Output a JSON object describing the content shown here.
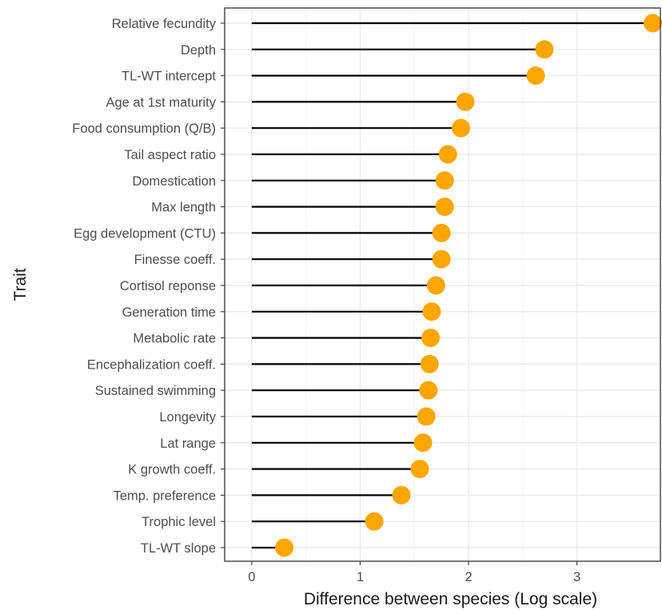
{
  "chart_data": {
    "type": "lollipop",
    "xlabel": "Difference between species (Log scale)",
    "ylabel": "Trait",
    "xlim": [
      -0.25,
      3.77
    ],
    "x_ticks": [
      0,
      1,
      2,
      3
    ],
    "grid": true,
    "point_color": "#FFA500",
    "stem_color": "#000000",
    "categories": [
      "Relative fecundity",
      "Depth",
      "TL-WT intercept",
      "Age at 1st maturity",
      "Food consumption (Q/B)",
      "Tail aspect ratio",
      "Domestication",
      "Max length",
      "Egg development (CTU)",
      "Finesse coeff.",
      "Cortisol reponse",
      "Generation time",
      "Metabolic rate",
      "Encephalization coeff.",
      "Sustained swimming",
      "Longevity",
      "Lat range",
      "K growth coeff.",
      "Temp. preference",
      "Trophic level",
      "TL-WT slope"
    ],
    "values": [
      3.7,
      2.7,
      2.62,
      1.97,
      1.93,
      1.81,
      1.78,
      1.78,
      1.75,
      1.75,
      1.7,
      1.66,
      1.65,
      1.64,
      1.63,
      1.61,
      1.58,
      1.55,
      1.38,
      1.13,
      0.3
    ]
  }
}
